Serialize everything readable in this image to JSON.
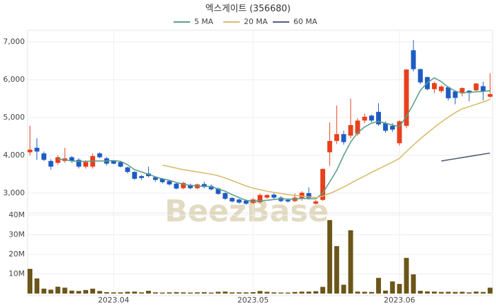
{
  "chart_data": [
    {
      "type": "candlestick",
      "title": "엑스게이트 (356680)",
      "watermark": "BeezBase",
      "up_color": "#e8401c",
      "down_color": "#1f5bc4",
      "open": [
        4080,
        4200,
        4050,
        3850,
        3800,
        3850,
        3950,
        3880,
        3700,
        3700,
        4050,
        3920,
        3850,
        3820,
        3680,
        3560,
        3450,
        3520,
        3420,
        3380,
        3320,
        3250,
        3130,
        3220,
        3130,
        3240,
        3190,
        3120,
        3000,
        2870,
        2830,
        2800,
        2740,
        2760,
        2880,
        2960,
        2880,
        2820,
        2790,
        2860,
        3000,
        2720,
        2820,
        4080,
        4380,
        4560,
        4520,
        4570,
        4920,
        5050,
        5150,
        4850,
        4780,
        4320,
        4780,
        6780,
        6280,
        6070,
        5750,
        5700,
        5800,
        5690,
        5640,
        5710,
        5720,
        5830,
        5550
      ],
      "high": [
        4780,
        4450,
        4100,
        3900,
        4000,
        4200,
        3980,
        3920,
        3870,
        4050,
        4080,
        3960,
        3870,
        3850,
        3700,
        3580,
        3480,
        3700,
        3450,
        3400,
        3350,
        3280,
        3300,
        3250,
        3250,
        3300,
        3230,
        3150,
        3020,
        2900,
        2850,
        2830,
        2870,
        2990,
        2970,
        3000,
        2920,
        2860,
        2990,
        3050,
        3150,
        2820,
        3650,
        4870,
        5320,
        4650,
        5500,
        4980,
        5100,
        5080,
        5380,
        4900,
        4850,
        4930,
        6280,
        7050,
        6300,
        6080,
        5950,
        5850,
        5830,
        5720,
        5800,
        5730,
        5910,
        5950,
        6170
      ],
      "low": [
        4000,
        3880,
        3850,
        3620,
        3750,
        3800,
        3800,
        3650,
        3650,
        3650,
        3920,
        3730,
        3760,
        3680,
        3520,
        3350,
        3350,
        3420,
        3300,
        3250,
        3200,
        3100,
        3100,
        3100,
        3100,
        3130,
        3070,
        2950,
        2820,
        2750,
        2720,
        2690,
        2710,
        2720,
        2850,
        2850,
        2760,
        2750,
        2760,
        2800,
        2830,
        2700,
        2790,
        3720,
        4300,
        4280,
        4450,
        4520,
        4850,
        4870,
        4780,
        4600,
        4620,
        4260,
        4720,
        6220,
        5880,
        5720,
        5650,
        5650,
        5450,
        5350,
        5560,
        5430,
        5700,
        5450,
        5520
      ],
      "close": [
        4150,
        4100,
        3880,
        3700,
        3950,
        3920,
        3850,
        3700,
        3820,
        3980,
        3950,
        3780,
        3780,
        3700,
        3560,
        3380,
        3400,
        3450,
        3350,
        3290,
        3230,
        3120,
        3270,
        3130,
        3230,
        3160,
        3100,
        2980,
        2850,
        2780,
        2750,
        2720,
        2830,
        2950,
        2950,
        2880,
        2790,
        2780,
        2880,
        3010,
        2870,
        2780,
        3640,
        4380,
        4560,
        4350,
        4800,
        4920,
        5020,
        4920,
        4820,
        4650,
        4680,
        4900,
        6270,
        6280,
        5930,
        5750,
        5910,
        5820,
        5510,
        5520,
        5780,
        5650,
        5900,
        5700,
        5620
      ],
      "series": [
        {
          "name": "5 MA",
          "color": "#5a9e8a",
          "values": [
            null,
            null,
            null,
            null,
            3900,
            3880,
            3850,
            3840,
            3840,
            3850,
            3850,
            3850,
            3860,
            3840,
            3750,
            3620,
            3560,
            3500,
            3430,
            3380,
            3340,
            3280,
            3240,
            3200,
            3190,
            3180,
            3170,
            3110,
            3050,
            2960,
            2880,
            2810,
            2780,
            2800,
            2810,
            2830,
            2850,
            2840,
            2840,
            2860,
            2850,
            2850,
            3000,
            3300,
            3600,
            4000,
            4350,
            4600,
            4750,
            4850,
            4900,
            4850,
            4800,
            4760,
            5030,
            5360,
            5720,
            5920,
            6050,
            5950,
            5800,
            5700,
            5650,
            5670,
            5680,
            5690,
            5710
          ]
        },
        {
          "name": "20 MA",
          "color": "#d8bb6a",
          "values": [
            null,
            null,
            null,
            null,
            null,
            null,
            null,
            null,
            null,
            null,
            null,
            null,
            null,
            null,
            null,
            null,
            null,
            null,
            null,
            3740,
            3700,
            3660,
            3620,
            3590,
            3560,
            3530,
            3500,
            3460,
            3400,
            3330,
            3260,
            3190,
            3130,
            3090,
            3050,
            3020,
            2990,
            2960,
            2940,
            2920,
            2900,
            2880,
            2920,
            2990,
            3070,
            3160,
            3260,
            3360,
            3450,
            3550,
            3640,
            3730,
            3820,
            3920,
            4100,
            4270,
            4440,
            4590,
            4740,
            4880,
            5010,
            5130,
            5230,
            5290,
            5350,
            5410,
            5480
          ]
        },
        {
          "name": "60 MA",
          "color": "#4f5d7a",
          "values": [
            null,
            null,
            null,
            null,
            null,
            null,
            null,
            null,
            null,
            null,
            null,
            null,
            null,
            null,
            null,
            null,
            null,
            null,
            null,
            null,
            null,
            null,
            null,
            null,
            null,
            null,
            null,
            null,
            null,
            null,
            null,
            null,
            null,
            null,
            null,
            null,
            null,
            null,
            null,
            null,
            null,
            null,
            null,
            null,
            null,
            null,
            null,
            null,
            null,
            null,
            null,
            null,
            null,
            null,
            null,
            null,
            null,
            null,
            null,
            3850,
            3880,
            3910,
            3940,
            3970,
            4000,
            4030,
            4060
          ]
        }
      ],
      "ylim": [
        2470,
        7310
      ],
      "yticks": [
        {
          "value": 3000,
          "label": "3,000"
        },
        {
          "value": 4000,
          "label": "4,000"
        },
        {
          "value": 5000,
          "label": "5,000"
        },
        {
          "value": 6000,
          "label": "6,000"
        },
        {
          "value": 7000,
          "label": "7,000"
        }
      ],
      "grid": true
    },
    {
      "type": "bar",
      "color": "#6b5518",
      "categories": [
        null,
        null,
        null,
        null,
        null,
        null,
        null,
        null,
        null,
        null,
        null,
        null,
        "2023.04",
        null,
        null,
        null,
        null,
        null,
        null,
        null,
        null,
        null,
        null,
        null,
        null,
        null,
        null,
        null,
        null,
        null,
        null,
        null,
        "2023.05",
        null,
        null,
        null,
        null,
        null,
        null,
        null,
        null,
        null,
        null,
        null,
        null,
        null,
        null,
        null,
        null,
        null,
        null,
        null,
        null,
        "2023.06",
        null,
        null,
        null,
        null,
        null,
        null,
        null,
        null,
        null,
        null,
        null,
        null,
        null
      ],
      "values": [
        12600000,
        7700000,
        2500000,
        2000000,
        3500000,
        3000000,
        1500000,
        1300000,
        1800000,
        2500000,
        1300000,
        700000,
        600000,
        600000,
        900000,
        1000000,
        600000,
        1400000,
        600000,
        500000,
        600000,
        700000,
        600000,
        500000,
        600000,
        700000,
        500000,
        900000,
        1000000,
        600000,
        600000,
        600000,
        700000,
        1300000,
        900000,
        600000,
        500000,
        500000,
        800000,
        1000000,
        1000000,
        1200000,
        3400000,
        37500000,
        24200000,
        4500000,
        32300000,
        1000000,
        900000,
        800000,
        8000000,
        1500000,
        6200000,
        4900000,
        18200000,
        9800000,
        1400000,
        1100000,
        1000000,
        800000,
        900000,
        800000,
        900000,
        600000,
        1000000,
        800000,
        3000000
      ],
      "ylim": [
        0,
        40000000
      ],
      "yticks": [
        {
          "value": 10000000,
          "label": "10M"
        },
        {
          "value": 20000000,
          "label": "20M"
        },
        {
          "value": 30000000,
          "label": "30M"
        },
        {
          "value": 40000000,
          "label": "40M"
        }
      ],
      "grid": true
    }
  ]
}
